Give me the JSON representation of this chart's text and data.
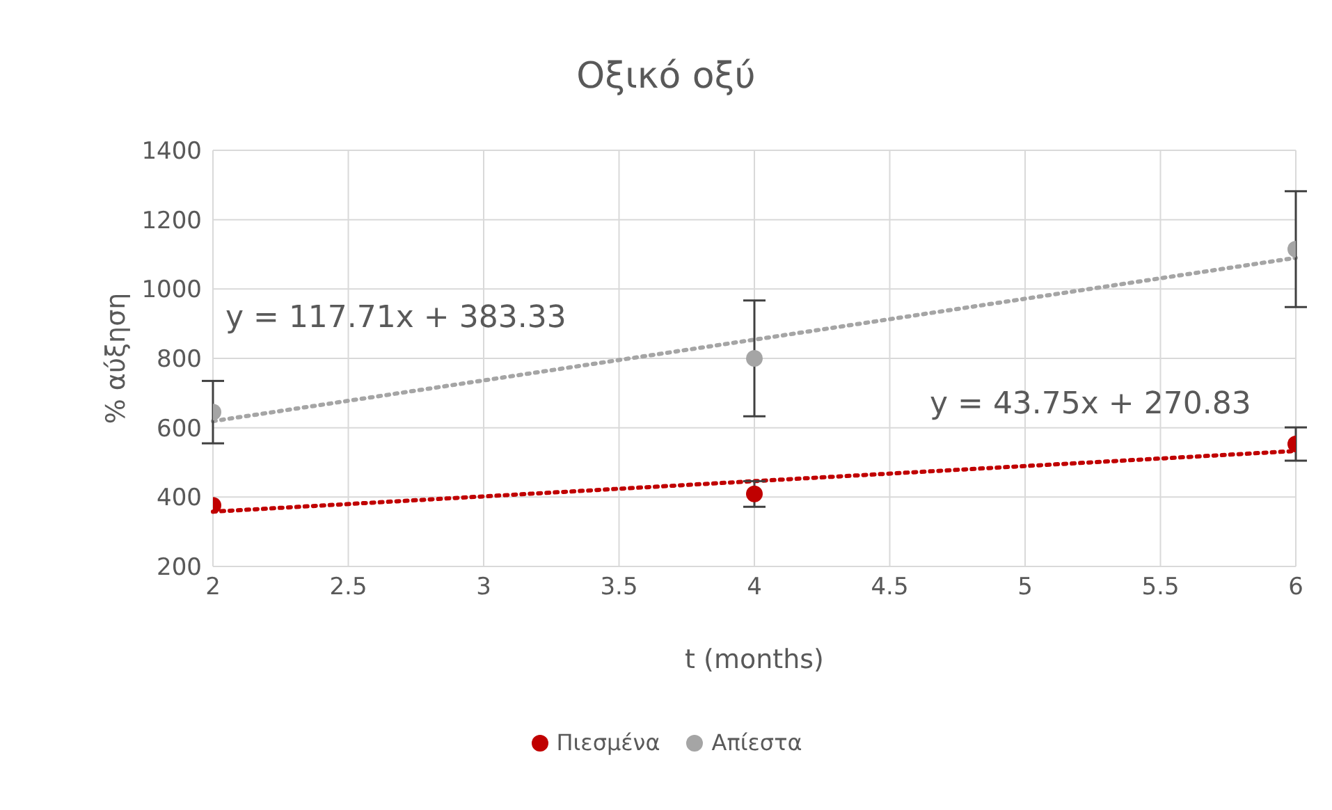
{
  "chart_data": {
    "type": "scatter",
    "title": "Οξικό οξύ",
    "xlabel": "t (months)",
    "ylabel": "% αύξηση",
    "x": [
      2,
      4,
      6
    ],
    "series": [
      {
        "name": "Πιεσμένα",
        "color": "#c00000",
        "values": [
          376,
          409,
          553
        ],
        "errors": [
          null,
          37,
          48
        ]
      },
      {
        "name": "Απίεστα",
        "color": "#a5a5a5",
        "values": [
          645,
          800,
          1115
        ],
        "errors": [
          90,
          167,
          167
        ]
      },
      {
        "type": "line",
        "color": "#c00000",
        "values": [
          358,
          446,
          533
        ],
        "line_style": "dotted",
        "marker": "none"
      },
      {
        "type": "line",
        "color": "#a5a5a5",
        "values": [
          619,
          854,
          1090
        ],
        "line_style": "dotted",
        "marker": "none"
      }
    ],
    "annotations": [
      "y = 117.71x + 383.33",
      "y = 43.75x + 270.83"
    ],
    "xlim": [
      2,
      6
    ],
    "xticks": [
      2,
      2.5,
      3,
      3.5,
      4,
      4.5,
      5,
      5.5,
      6
    ],
    "ylim": [
      200,
      1400
    ],
    "yticks": [
      200,
      400,
      600,
      800,
      1000,
      1200,
      1400
    ],
    "grid": true,
    "legend": "bottom",
    "marker": "circle"
  }
}
